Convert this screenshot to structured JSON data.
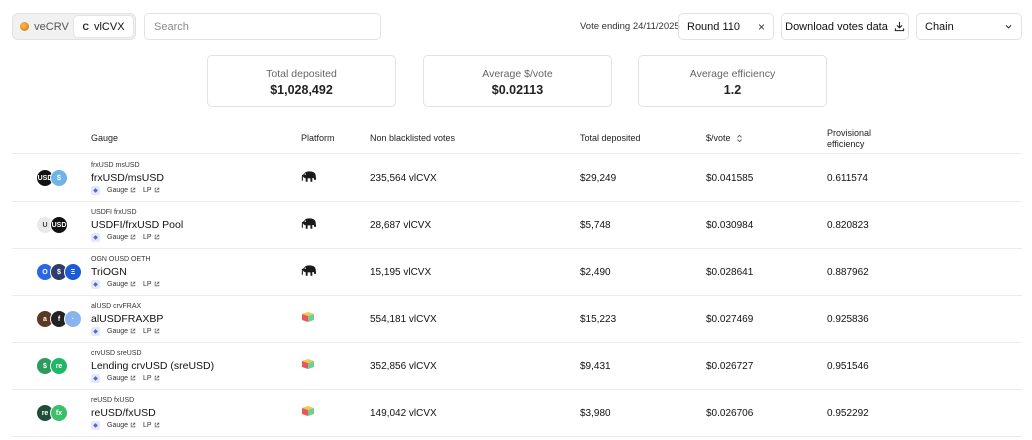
{
  "toggle": {
    "options": [
      "veCRV",
      "vlCVX"
    ],
    "active": "vlCVX"
  },
  "search": {
    "placeholder": "Search"
  },
  "vote_ending": "Vote ending 24/11/2025",
  "round": {
    "label": "Round 110",
    "clear": "×"
  },
  "download": {
    "label": "Download votes data"
  },
  "chain": {
    "label": "Chain"
  },
  "summary": {
    "total_deposited": {
      "label": "Total deposited",
      "value": "$1,028,492"
    },
    "avg_per_vote": {
      "label": "Average $/vote",
      "value": "$0.02113"
    },
    "avg_efficiency": {
      "label": "Average efficiency",
      "value": "1.2"
    }
  },
  "table": {
    "headers": {
      "gauge": "Gauge",
      "platform": "Platform",
      "votes": "Non blacklisted votes",
      "deposited": "Total deposited",
      "per_vote": "$/vote",
      "efficiency_1": "Provisional",
      "efficiency_2": "efficiency"
    },
    "link_gauge": "Gauge",
    "link_lp": "LP",
    "rows": [
      {
        "coins": "frxUSD  msUSD",
        "name": "frxUSD/msUSD",
        "platform": "elephant",
        "votes": "235,564 vlCVX",
        "deposited": "$29,249",
        "per_vote": "$0.041585",
        "efficiency": "0.611574",
        "icons": [
          {
            "bg": "#111111",
            "t": "USD"
          },
          {
            "bg": "#6fb4e6",
            "t": "$"
          }
        ]
      },
      {
        "coins": "USDFI  frxUSD",
        "name": "USDFI/frxUSD Pool",
        "platform": "elephant",
        "votes": "28,687 vlCVX",
        "deposited": "$5,748",
        "per_vote": "$0.030984",
        "efficiency": "0.820823",
        "icons": [
          {
            "bg": "#e9e9e9",
            "t": "U"
          },
          {
            "bg": "#111111",
            "t": "USD"
          }
        ]
      },
      {
        "coins": "OGN  OUSD  OETH",
        "name": "TriOGN",
        "platform": "elephant",
        "votes": "15,195 vlCVX",
        "deposited": "$2,490",
        "per_vote": "$0.028641",
        "efficiency": "0.887962",
        "icons": [
          {
            "bg": "#2a67e2",
            "t": "O"
          },
          {
            "bg": "#2e3d6b",
            "t": "$"
          },
          {
            "bg": "#1b5bd6",
            "t": "Ξ"
          }
        ]
      },
      {
        "coins": "alUSD  crvFRAX",
        "name": "alUSDFRAXBP",
        "platform": "multi",
        "votes": "554,181 vlCVX",
        "deposited": "$15,223",
        "per_vote": "$0.027469",
        "efficiency": "0.925836",
        "icons": [
          {
            "bg": "#5a3a22",
            "t": "a"
          },
          {
            "bg": "#222222",
            "t": "f"
          },
          {
            "bg": "#8ab4f0",
            "t": "·"
          }
        ]
      },
      {
        "coins": "crvUSD  sreUSD",
        "name": "Lending crvUSD (sreUSD)",
        "platform": "multi",
        "votes": "352,856 vlCVX",
        "deposited": "$9,431",
        "per_vote": "$0.026727",
        "efficiency": "0.951546",
        "icons": [
          {
            "bg": "#2c9b5c",
            "t": "$"
          },
          {
            "bg": "#1fb869",
            "t": "re"
          }
        ]
      },
      {
        "coins": "reUSD  fxUSD",
        "name": "reUSD/fxUSD",
        "platform": "multi",
        "votes": "149,042 vlCVX",
        "deposited": "$3,980",
        "per_vote": "$0.026706",
        "efficiency": "0.952292",
        "icons": [
          {
            "bg": "#1f4d3a",
            "t": "re"
          },
          {
            "bg": "#3cbf6a",
            "t": "fx"
          }
        ]
      }
    ]
  },
  "colors": {
    "border": "#e2e2e2",
    "eth_badge": "#5963c9"
  }
}
